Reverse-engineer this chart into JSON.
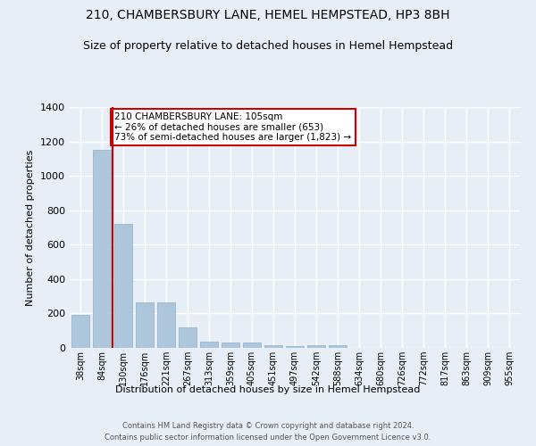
{
  "title1": "210, CHAMBERSBURY LANE, HEMEL HEMPSTEAD, HP3 8BH",
  "title2": "Size of property relative to detached houses in Hemel Hempstead",
  "xlabel": "Distribution of detached houses by size in Hemel Hempstead",
  "ylabel": "Number of detached properties",
  "footer1": "Contains HM Land Registry data © Crown copyright and database right 2024.",
  "footer2": "Contains public sector information licensed under the Open Government Licence v3.0.",
  "categories": [
    "38sqm",
    "84sqm",
    "130sqm",
    "176sqm",
    "221sqm",
    "267sqm",
    "313sqm",
    "359sqm",
    "405sqm",
    "451sqm",
    "497sqm",
    "542sqm",
    "588sqm",
    "634sqm",
    "680sqm",
    "726sqm",
    "772sqm",
    "817sqm",
    "863sqm",
    "909sqm",
    "955sqm"
  ],
  "values": [
    190,
    1150,
    720,
    265,
    265,
    120,
    38,
    32,
    30,
    14,
    10,
    14,
    14,
    0,
    0,
    0,
    0,
    0,
    0,
    0,
    0
  ],
  "bar_color": "#aec6dc",
  "bar_edge_color": "#8aafc8",
  "property_line_x": 1.5,
  "property_line_color": "#cc0000",
  "annotation_text": "210 CHAMBERSBURY LANE: 105sqm\n← 26% of detached houses are smaller (653)\n73% of semi-detached houses are larger (1,823) →",
  "annotation_box_color": "#ffffff",
  "annotation_box_edge_color": "#cc0000",
  "ylim": [
    0,
    1400
  ],
  "yticks": [
    0,
    200,
    400,
    600,
    800,
    1000,
    1200,
    1400
  ],
  "bg_color": "#e8eef5",
  "plot_bg_color": "#e8eef5",
  "grid_color": "#ffffff",
  "title1_fontsize": 10,
  "title2_fontsize": 9
}
